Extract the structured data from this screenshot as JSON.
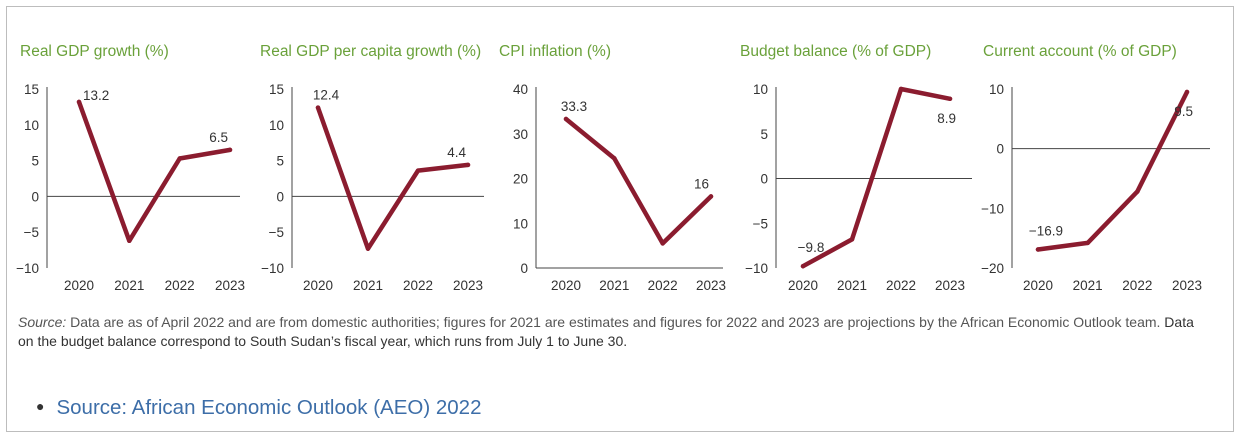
{
  "colors": {
    "line": "#8b1c2f",
    "title": "#6aa13a",
    "axis": "#444444",
    "link": "#3d6ea8"
  },
  "chart_data": [
    {
      "type": "line",
      "title": "Real GDP growth (%)",
      "categories": [
        "2020",
        "2021",
        "2022",
        "2023"
      ],
      "values": [
        13.2,
        -6.2,
        5.3,
        6.5
      ],
      "ylim": [
        -10,
        15
      ],
      "yticks": [
        -10,
        -5,
        0,
        5,
        10,
        15
      ],
      "data_labels": [
        {
          "index": 0,
          "text": "13.2"
        },
        {
          "index": 3,
          "text": "6.5"
        }
      ]
    },
    {
      "type": "line",
      "title": "Real GDP per capita growth (%)",
      "categories": [
        "2020",
        "2021",
        "2022",
        "2023"
      ],
      "values": [
        12.4,
        -7.3,
        3.6,
        4.4
      ],
      "ylim": [
        -10,
        15
      ],
      "yticks": [
        -10,
        -5,
        0,
        5,
        10,
        15
      ],
      "data_labels": [
        {
          "index": 0,
          "text": "12.4"
        },
        {
          "index": 3,
          "text": "4.4"
        }
      ]
    },
    {
      "type": "line",
      "title": "CPI inflation (%)",
      "categories": [
        "2020",
        "2021",
        "2022",
        "2023"
      ],
      "values": [
        33.3,
        24.5,
        5.5,
        16.0
      ],
      "ylim": [
        0,
        40
      ],
      "yticks": [
        0,
        10,
        20,
        30,
        40
      ],
      "data_labels": [
        {
          "index": 0,
          "text": "33.3"
        },
        {
          "index": 3,
          "text": "16.0"
        }
      ]
    },
    {
      "type": "line",
      "title": "Budget balance (% of GDP)",
      "categories": [
        "2020",
        "2021",
        "2022",
        "2023"
      ],
      "values": [
        -9.8,
        -6.8,
        10.0,
        8.9
      ],
      "ylim": [
        -10,
        10
      ],
      "yticks": [
        -10,
        -5,
        0,
        5,
        10
      ],
      "data_labels": [
        {
          "index": 0,
          "text": "-9.8"
        },
        {
          "index": 3,
          "text": "8.9"
        }
      ]
    },
    {
      "type": "line",
      "title": "Current account (% of GDP)",
      "categories": [
        "2020",
        "2021",
        "2022",
        "2023"
      ],
      "values": [
        -16.9,
        -15.8,
        -7.2,
        9.5
      ],
      "ylim": [
        -20,
        10
      ],
      "yticks": [
        -20,
        -10,
        0,
        10
      ],
      "data_labels": [
        {
          "index": 0,
          "text": "-16.9"
        },
        {
          "index": 3,
          "text": "9.5"
        }
      ]
    }
  ],
  "source_note": {
    "label": "Source:",
    "text": " Data are as of April 2022 and are from domestic authorities; figures for 2021 are estimates and figures for 2022 and 2023 are projections by the African Economic Outlook team.",
    "text_dark": " Data on the budget balance correspond to South Sudan’s fiscal year, which runs from July 1 to June 30."
  },
  "link": {
    "bullet": "●",
    "text": "Source: African Economic Outlook (AEO) 2022"
  }
}
